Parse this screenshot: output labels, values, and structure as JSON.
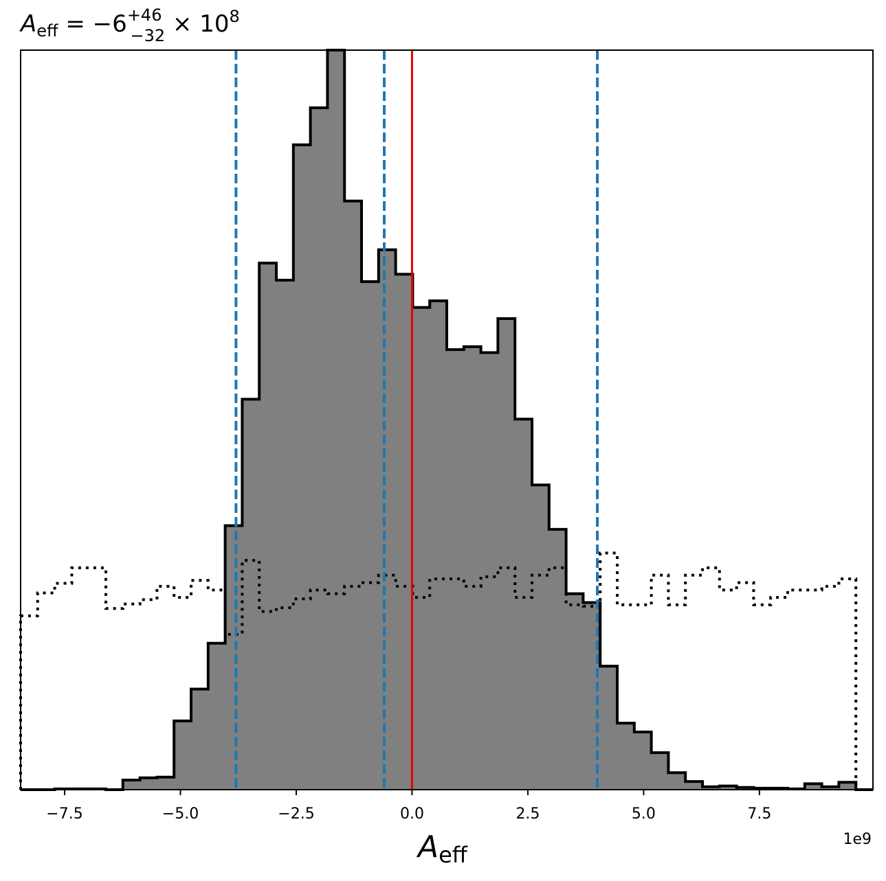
{
  "chart_data": {
    "type": "histogram",
    "title_main": "A",
    "title_sub": "eff",
    "title_rest": " = −6",
    "title_sup": "+46",
    "title_inf": "−32",
    "title_times": " × 10",
    "title_exp": "8",
    "xlabel_main": "A",
    "xlabel_sub": "eff",
    "offset_text": "1e9",
    "xlim": [
      -8.45,
      9.95
    ],
    "ylim": [
      0,
      1.0
    ],
    "x_tick_values": [
      -7.5,
      -5.0,
      -2.5,
      0.0,
      2.5,
      5.0,
      7.5
    ],
    "x_tick_labels": [
      "−7.5",
      "−5.0",
      "−2.5",
      "0.0",
      "2.5",
      "5.0",
      "7.5"
    ],
    "bin_edges": [
      -8.45,
      -8.082,
      -7.714,
      -7.346,
      -6.978,
      -6.61,
      -6.242,
      -5.874,
      -5.506,
      -5.138,
      -4.77,
      -4.402,
      -4.034,
      -3.666,
      -3.298,
      -2.93,
      -2.562,
      -2.194,
      -1.826,
      -1.458,
      -1.09,
      -0.722,
      -0.354,
      0.014,
      0.382,
      0.75,
      1.118,
      1.486,
      1.854,
      2.222,
      2.59,
      2.958,
      3.326,
      3.694,
      4.062,
      4.43,
      4.798,
      5.166,
      5.534,
      5.902,
      6.27,
      6.638,
      7.006,
      7.374,
      7.742,
      8.11,
      8.478,
      8.846,
      9.214,
      9.582,
      9.95
    ],
    "series": [
      {
        "style": "filled",
        "fill_color": "#808080",
        "edge_color": "#000000",
        "values": [
          0.0,
          0.0,
          0.001,
          0.001,
          0.001,
          0.0,
          0.013,
          0.016,
          0.017,
          0.093,
          0.136,
          0.198,
          0.357,
          0.528,
          0.712,
          0.689,
          0.872,
          0.922,
          1.0,
          0.796,
          0.687,
          0.73,
          0.697,
          0.652,
          0.661,
          0.595,
          0.599,
          0.591,
          0.637,
          0.501,
          0.412,
          0.352,
          0.265,
          0.253,
          0.167,
          0.09,
          0.078,
          0.05,
          0.023,
          0.011,
          0.004,
          0.005,
          0.003,
          0.002,
          0.002,
          0.001,
          0.008,
          0.004,
          0.01,
          0.0
        ]
      },
      {
        "style": "dotted",
        "edge_color": "#000000",
        "values": [
          0.235,
          0.266,
          0.279,
          0.3,
          0.3,
          0.245,
          0.251,
          0.257,
          0.275,
          0.26,
          0.283,
          0.27,
          0.21,
          0.31,
          0.241,
          0.246,
          0.258,
          0.27,
          0.265,
          0.275,
          0.28,
          0.29,
          0.275,
          0.26,
          0.285,
          0.285,
          0.275,
          0.288,
          0.3,
          0.26,
          0.29,
          0.3,
          0.25,
          0.248,
          0.32,
          0.25,
          0.25,
          0.29,
          0.25,
          0.29,
          0.3,
          0.27,
          0.28,
          0.25,
          0.26,
          0.27,
          0.27,
          0.275,
          0.285,
          0.0
        ]
      }
    ],
    "vlines": [
      {
        "x": -3.8,
        "color": "#1f77b4",
        "style": "dashed"
      },
      {
        "x": -0.6,
        "color": "#1f77b4",
        "style": "dashed"
      },
      {
        "x": 4.0,
        "color": "#1f77b4",
        "style": "dashed"
      },
      {
        "x": 0.0,
        "color": "#e50000",
        "style": "solid"
      }
    ],
    "grid": false,
    "y_ticks_shown": false
  }
}
